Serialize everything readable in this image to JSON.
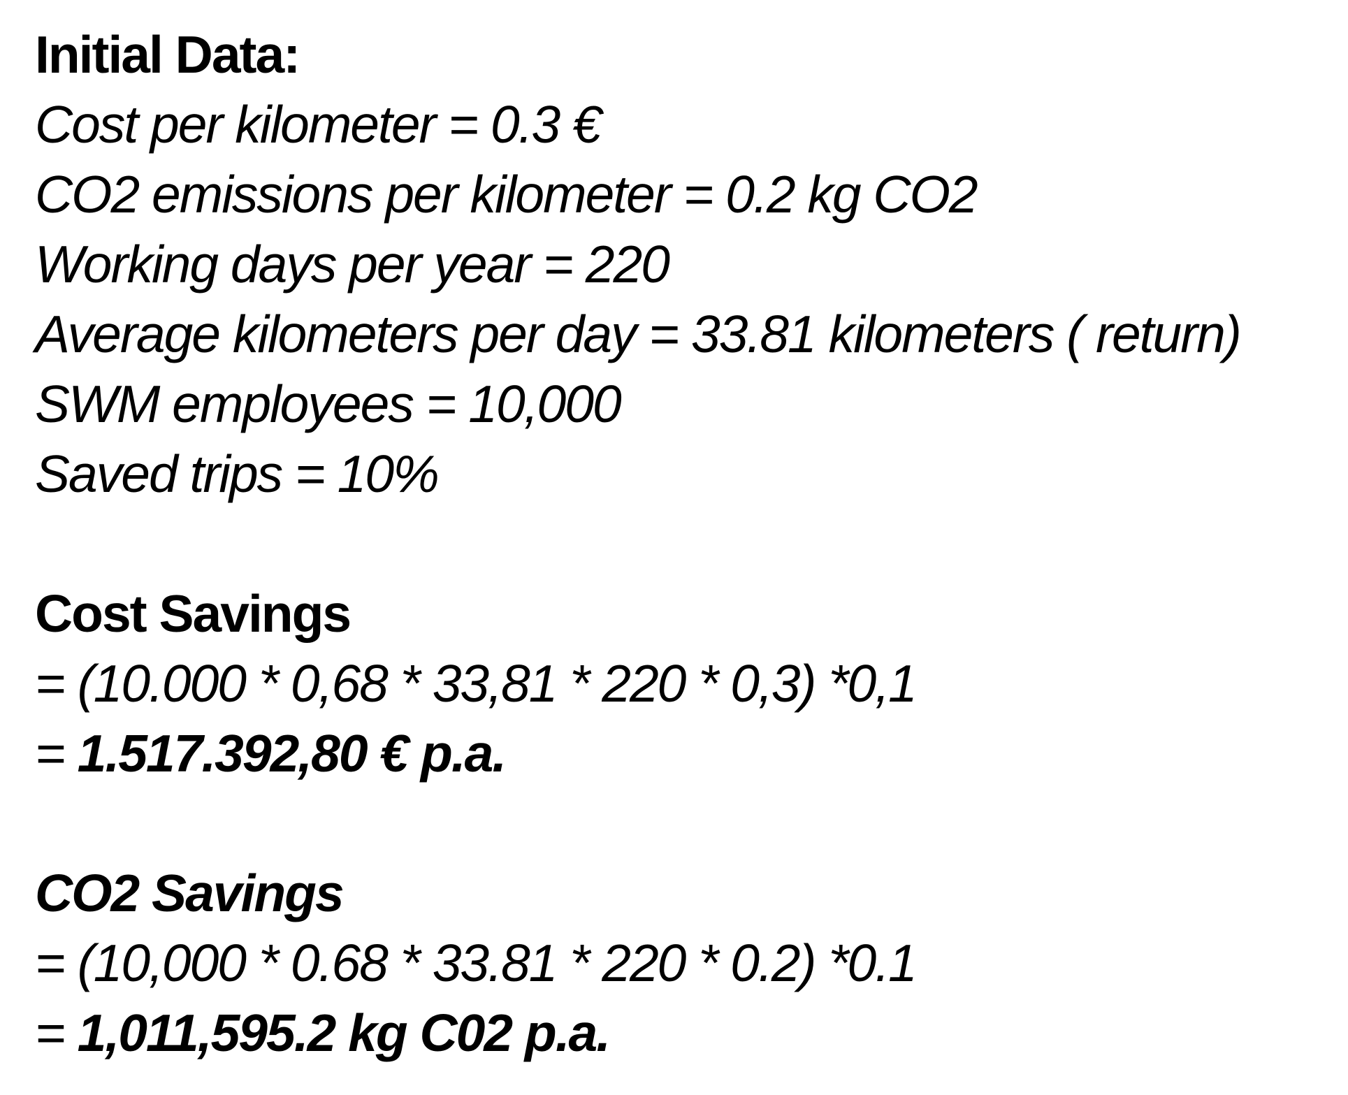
{
  "initial": {
    "heading": "Initial Data:",
    "items": [
      "Cost per kilometer = 0.3 €",
      "CO2 emissions per kilometer = 0.2 kg CO2",
      "Working days per year = 220",
      "Average kilometers per day = 33.81 kilometers ( return)",
      "SWM employees = 10,000",
      "Saved trips = 10%"
    ]
  },
  "cost_savings": {
    "heading": "Cost Savings",
    "formula": "= (10.000 * 0,68 * 33,81 * 220 * 0,3) *0,1",
    "result_prefix": "= ",
    "result_value": "1.517.392,80 € p.a."
  },
  "co2_savings": {
    "heading": "CO2 Savings",
    "formula": "= (10,000 * 0.68 * 33.81 * 220 * 0.2) *0.1",
    "result_prefix": "= ",
    "result_value": "1,011,595.2 kg C02 p.a."
  }
}
